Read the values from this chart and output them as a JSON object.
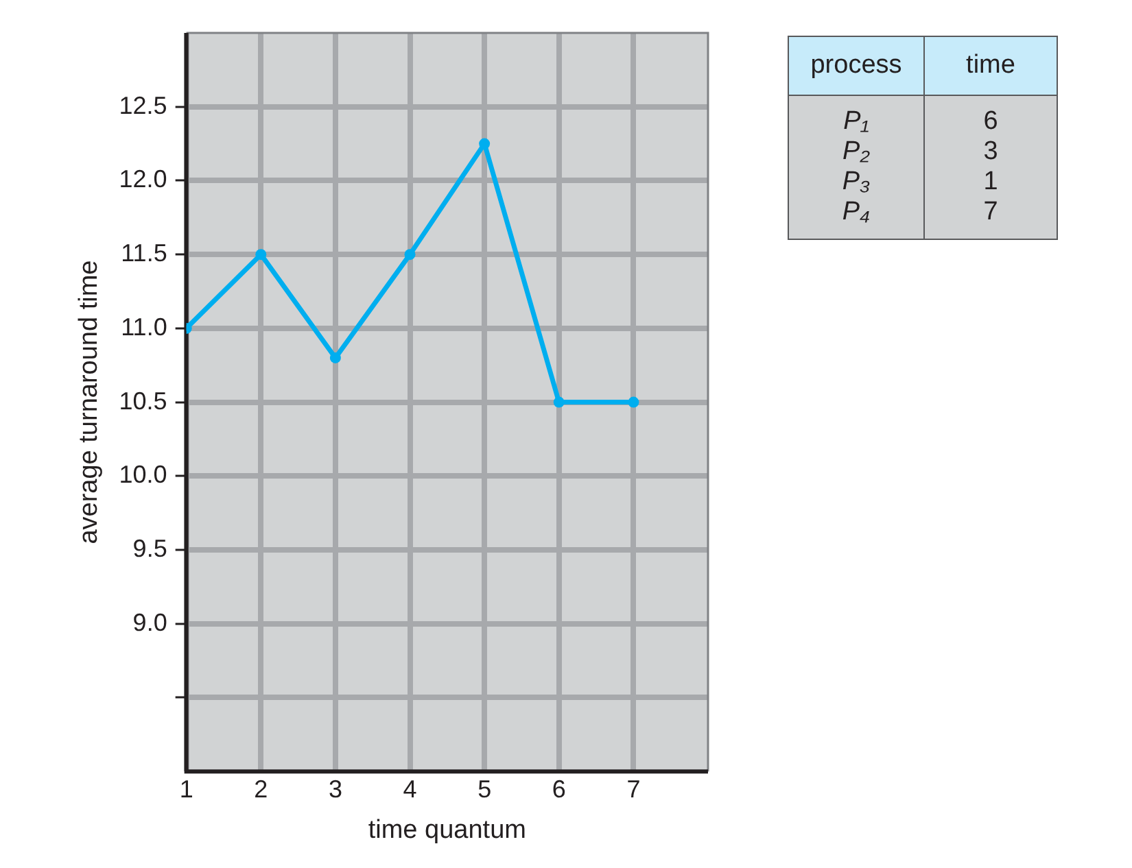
{
  "chart_data": [
    {
      "type": "line",
      "xlabel": "time quantum",
      "ylabel": "average turnaround time",
      "x": [
        1,
        2,
        3,
        4,
        5,
        6,
        7
      ],
      "series": [
        {
          "color": "#00aeef",
          "values": [
            11.0,
            11.5,
            10.8,
            11.5,
            12.25,
            10.5,
            10.5
          ]
        }
      ],
      "xlim": [
        1,
        8
      ],
      "xticks": [
        1,
        2,
        3,
        4,
        5,
        6,
        7
      ],
      "ylim": [
        8,
        13
      ],
      "yticks": [
        {
          "value": 8.5,
          "label": null
        },
        {
          "value": 9,
          "label": "9.0"
        },
        9.5,
        {
          "value": 10,
          "label": "10.0"
        },
        10.5,
        {
          "value": 11,
          "label": "11.0"
        },
        11.5,
        {
          "value": 12,
          "label": "12.0"
        },
        12.5
      ],
      "grid": true,
      "legend": false,
      "marker": "circle",
      "line_style": "solid"
    },
    {
      "type": "other",
      "annotations": [
        "process",
        "time"
      ],
      "categories": [
        "P₁",
        "P₂",
        "P₃",
        "P₄"
      ],
      "values": [
        6,
        3,
        1,
        7
      ],
      "data_labels": true
    }
  ]
}
